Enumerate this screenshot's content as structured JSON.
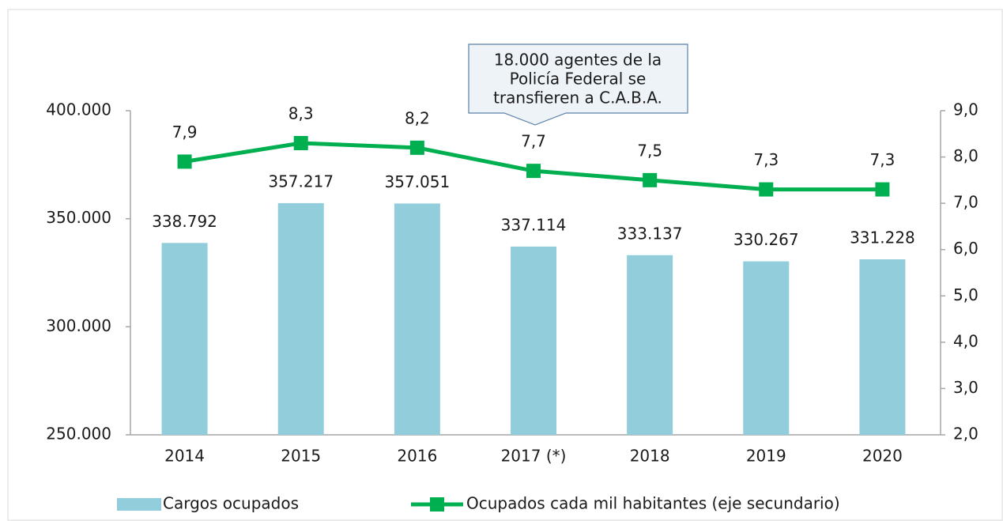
{
  "chart_data": {
    "type": "bar",
    "categories": [
      "2014",
      "2015",
      "2016",
      "2017 (*)",
      "2018",
      "2019",
      "2020"
    ],
    "series": [
      {
        "name": "Cargos ocupados",
        "type": "bar",
        "color": "#92cddc",
        "values": [
          338792,
          357217,
          357051,
          337114,
          333137,
          330267,
          331228
        ],
        "value_labels": [
          "338.792",
          "357.217",
          "357.051",
          "337.114",
          "333.137",
          "330.267",
          "331.228"
        ]
      },
      {
        "name": "Ocupados cada mil habitantes (eje secundario)",
        "type": "line",
        "axis": "y2",
        "color": "#00b050",
        "values": [
          7.9,
          8.3,
          8.2,
          7.7,
          7.5,
          7.3,
          7.3
        ],
        "value_labels": [
          "7,9",
          "8,3",
          "8,2",
          "7,7",
          "7,5",
          "7,3",
          "7,3"
        ]
      }
    ],
    "ylim": [
      250000,
      400000
    ],
    "yticks": [
      {
        "value": 250000,
        "label": "250.000"
      },
      {
        "value": 300000,
        "label": "300.000"
      },
      {
        "value": 350000,
        "label": "350.000"
      },
      {
        "value": 400000,
        "label": "400.000"
      }
    ],
    "y2lim": [
      2,
      9
    ],
    "y2ticks": [
      {
        "value": 2,
        "label": "2,0"
      },
      {
        "value": 3,
        "label": "3,0"
      },
      {
        "value": 4,
        "label": "4,0"
      },
      {
        "value": 5,
        "label": "5,0"
      },
      {
        "value": 6,
        "label": "6,0"
      },
      {
        "value": 7,
        "label": "7,0"
      },
      {
        "value": 8,
        "label": "8,0"
      },
      {
        "value": 9,
        "label": "9,0"
      }
    ],
    "annotation": [
      "18.000 agentes de la",
      "Policía Federal se",
      "transfieren a C.A.B.A."
    ],
    "grid": false,
    "legend": "bottom"
  }
}
